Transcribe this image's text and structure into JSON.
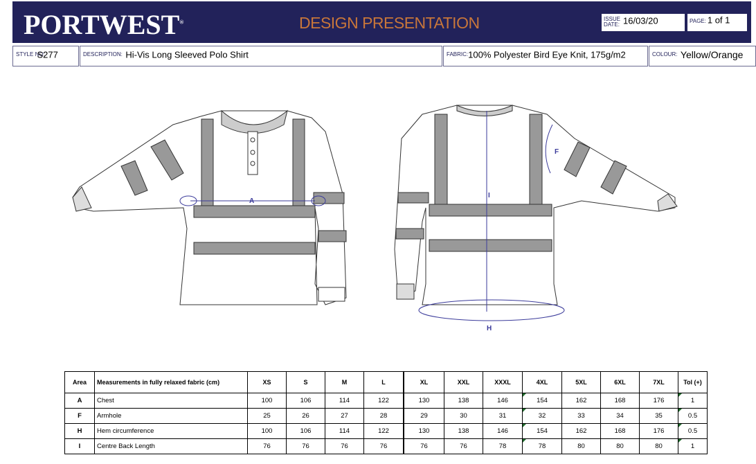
{
  "header": {
    "brand": "PORTWEST",
    "trademark": "®",
    "title": "DESIGN PRESENTATION",
    "issue_date_label": "ISSUE DATE:",
    "issue_date": "16/03/20",
    "page_label": "PAGE:",
    "page": "1 of 1"
  },
  "info": {
    "style_label": "STYLE NO:",
    "style": "S277",
    "description_label": "DESCRIPTION:",
    "description": "Hi-Vis Long Sleeved Polo Shirt",
    "fabric_label": "FABRIC:",
    "fabric": "100% Polyester Bird Eye Knit, 175g/m2",
    "colour_label": "COLOUR:",
    "colour": "Yellow/Orange"
  },
  "drawing": {
    "front_labels": {
      "A": "A"
    },
    "back_labels": {
      "F": "F",
      "I": "I",
      "H": "H"
    },
    "measure_color": "#3a3a9a"
  },
  "table": {
    "headers": [
      "Area",
      "Measurements in fully relaxed fabric (cm)",
      "XS",
      "S",
      "M",
      "L",
      "XL",
      "XXL",
      "XXXL",
      "4XL",
      "5XL",
      "6XL",
      "7XL",
      "Tol (+)"
    ],
    "rows": [
      [
        "A",
        "Chest",
        "100",
        "106",
        "114",
        "122",
        "130",
        "138",
        "146",
        "154",
        "162",
        "168",
        "176",
        "1"
      ],
      [
        "F",
        "Armhole",
        "25",
        "26",
        "27",
        "28",
        "29",
        "30",
        "31",
        "32",
        "33",
        "34",
        "35",
        "0.5"
      ],
      [
        "H",
        "Hem circumference",
        "100",
        "106",
        "114",
        "122",
        "130",
        "138",
        "146",
        "154",
        "162",
        "168",
        "176",
        "0.5"
      ],
      [
        "I",
        "Centre Back Length",
        "76",
        "76",
        "76",
        "76",
        "76",
        "76",
        "78",
        "78",
        "80",
        "80",
        "80",
        "1"
      ]
    ]
  }
}
